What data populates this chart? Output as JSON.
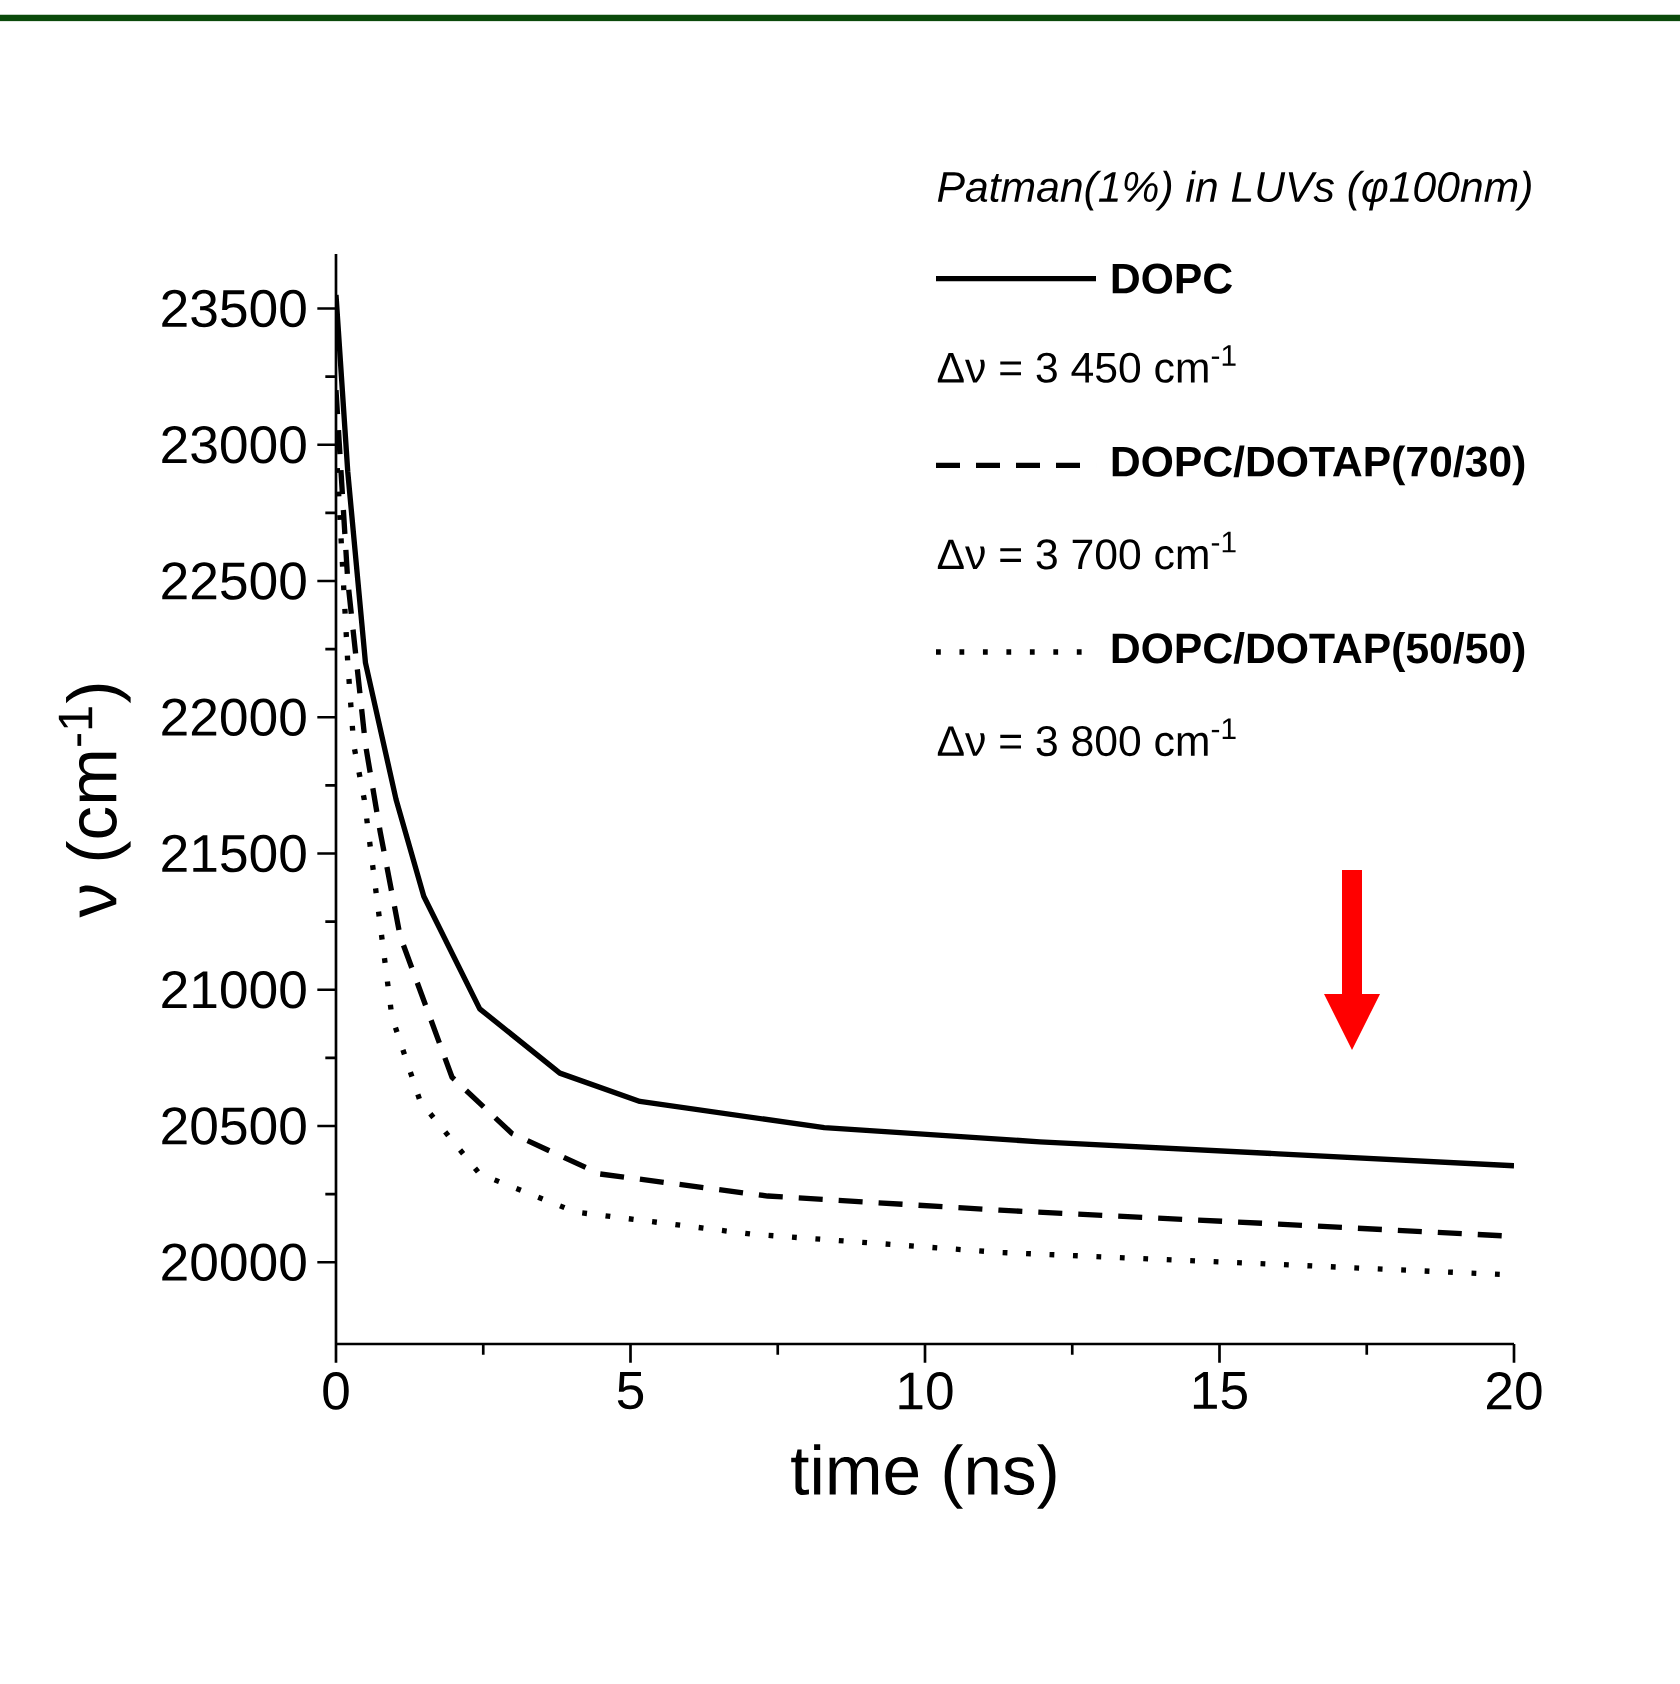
{
  "chart_data": {
    "type": "line",
    "xlabel": "time (ns)",
    "ylabel": "ν (cm$^{-1}$)",
    "legend_title": "Patman(1%) in LUVs (φ100nm)",
    "xlim": [
      0,
      20
    ],
    "ylim": [
      19700,
      23700
    ],
    "xticks": [
      0,
      5,
      10,
      15,
      20
    ],
    "yticks": [
      20000,
      20500,
      21000,
      21500,
      22000,
      22500,
      23000,
      23500
    ],
    "legend": "top right",
    "grid": false,
    "marker": "none",
    "series": [
      {
        "name": "DOPC",
        "color": "#000000",
        "line_style": "solid",
        "x": [
          0,
          0.2,
          0.5,
          1.02,
          1.49,
          2.44,
          3.8,
          5.16,
          8.29,
          11.95,
          16.0,
          20
        ],
        "values": [
          23550,
          22900,
          22200,
          21698,
          21343,
          20930,
          20694,
          20590,
          20494,
          20442,
          20398,
          20354
        ]
      },
      {
        "name": "DOPC/DOTAP(70/30)",
        "color": "#000000",
        "line_style": "dashed",
        "x": [
          0,
          0.2,
          0.5,
          0.75,
          1.09,
          1.97,
          2.99,
          4.48,
          7.33,
          11.27,
          16.0,
          20
        ],
        "values": [
          23200,
          22500,
          21900,
          21580,
          21196,
          20679,
          20472,
          20324,
          20243,
          20191,
          20140,
          20095
        ]
      },
      {
        "name": "DOPC/DOTAP(50/50)",
        "color": "#000000",
        "line_style": "dotted",
        "x": [
          0,
          0.2,
          0.3,
          0.48,
          0.95,
          1.43,
          2.44,
          4.07,
          7.06,
          11.27,
          16.0,
          19.8
        ],
        "values": [
          23000,
          22200,
          21900,
          21698,
          20900,
          20590,
          20324,
          20184,
          20103,
          20036,
          19992,
          19955
        ]
      }
    ],
    "annotations": [
      "Δν = 3 450 cm$^{-1}$",
      "Δν = 3 700 cm$^{-1}$",
      "Δν = 3 800 cm$^{-1}$"
    ]
  }
}
